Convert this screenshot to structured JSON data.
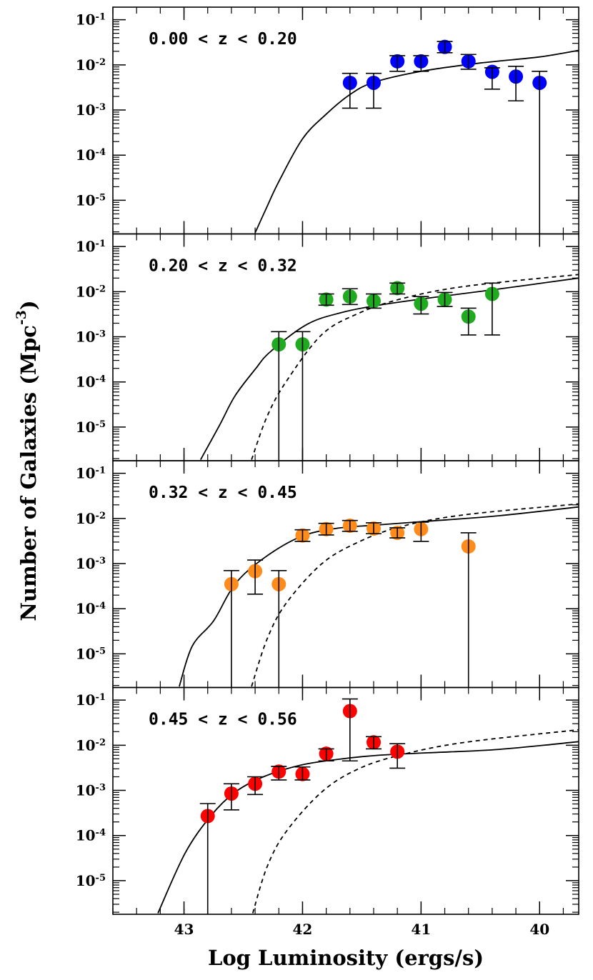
{
  "xlabel": "Log Luminosity (ergs/s)",
  "ylabel": "Number of Galaxies (Mpc^{-3})",
  "chart_data": [
    {
      "type": "scatter",
      "title": "0.00 < z < 0.20",
      "color": "#0000ff",
      "log_y": true,
      "xlim": [
        43.6,
        39.67
      ],
      "ylim": [
        1.8e-06,
        0.19
      ],
      "xticks": [
        43,
        42,
        41,
        40
      ],
      "yticks": [
        {
          "value": 0.1,
          "label": "10^{-1}"
        },
        {
          "value": 0.01,
          "label": "10^{-2}"
        },
        {
          "value": 0.001,
          "label": "10^{-3}"
        },
        {
          "value": 0.0001,
          "label": "10^{-4}"
        },
        {
          "value": 1e-05,
          "label": "10^{-5}"
        }
      ],
      "x": [
        41.6,
        41.4,
        41.2,
        41.0,
        40.8,
        40.6,
        40.4,
        40.2,
        40.0
      ],
      "values": [
        0.004,
        0.004,
        0.012,
        0.012,
        0.025,
        0.012,
        0.007,
        0.0055,
        0.004
      ],
      "lower": [
        0.0011,
        0.0011,
        0.0072,
        0.0072,
        0.0186,
        0.008,
        0.0029,
        0.0016,
        0
      ],
      "upper": [
        0.0065,
        0.0065,
        0.016,
        0.016,
        0.033,
        0.017,
        0.0086,
        0.0093,
        0.0072
      ],
      "curves": [
        {
          "dashed": false,
          "x": [
            42.4,
            42.3,
            42.2,
            42.0,
            41.8,
            41.6,
            41.4,
            41.0,
            40.5,
            40.0,
            39.67
          ],
          "y": [
            1.9e-06,
            7.2e-06,
            2.6e-05,
            0.00023,
            0.00081,
            0.0022,
            0.0041,
            0.0072,
            0.011,
            0.015,
            0.021
          ]
        }
      ]
    },
    {
      "type": "scatter",
      "title": "0.20 < z < 0.32",
      "color": "#1faa1f",
      "log_y": true,
      "xlim": [
        43.6,
        39.67
      ],
      "ylim": [
        1.8e-06,
        0.19
      ],
      "xticks": [
        43,
        42,
        41,
        40
      ],
      "yticks": [
        {
          "value": 0.1,
          "label": "10^{-1}"
        },
        {
          "value": 0.01,
          "label": "10^{-2}"
        },
        {
          "value": 0.001,
          "label": "10^{-3}"
        },
        {
          "value": 0.0001,
          "label": "10^{-4}"
        },
        {
          "value": 1e-05,
          "label": "10^{-5}"
        }
      ],
      "x": [
        42.2,
        42.0,
        41.8,
        41.6,
        41.4,
        41.2,
        41.0,
        40.8,
        40.6,
        40.4
      ],
      "values": [
        0.00068,
        0.00068,
        0.0067,
        0.0078,
        0.0062,
        0.012,
        0.0054,
        0.0067,
        0.0028,
        0.0089
      ],
      "lower": [
        0,
        0,
        0.005,
        0.0052,
        0.0043,
        0.0089,
        0.0032,
        0.0047,
        0.0011,
        0.0011
      ],
      "upper": [
        0.0013,
        0.0013,
        0.0089,
        0.0116,
        0.0089,
        0.0155,
        0.0078,
        0.0096,
        0.0043,
        0.0155
      ],
      "curves": [
        {
          "dashed": false,
          "x": [
            42.86,
            42.7,
            42.57,
            42.4,
            42.27,
            41.96,
            41.66,
            41.36,
            40.94,
            40.34,
            39.67
          ],
          "y": [
            1.9e-06,
            1.1e-05,
            4.9e-05,
            0.00019,
            0.00047,
            0.0019,
            0.0035,
            0.005,
            0.0072,
            0.0115,
            0.02
          ]
        },
        {
          "dashed": true,
          "x": [
            42.43,
            42.3,
            42.14,
            41.84,
            41.54,
            41.18,
            40.64,
            39.67
          ],
          "y": [
            1.9e-06,
            1.7e-05,
            0.0001,
            0.0011,
            0.0032,
            0.0068,
            0.013,
            0.024
          ]
        }
      ]
    },
    {
      "type": "scatter",
      "title": "0.32 < z < 0.45",
      "color": "#ff8c1a",
      "log_y": true,
      "xlim": [
        43.6,
        39.67
      ],
      "ylim": [
        1.8e-06,
        0.19
      ],
      "xticks": [
        43,
        42,
        41,
        40
      ],
      "yticks": [
        {
          "value": 0.1,
          "label": "10^{-1}"
        },
        {
          "value": 0.01,
          "label": "10^{-2}"
        },
        {
          "value": 0.001,
          "label": "10^{-3}"
        },
        {
          "value": 0.0001,
          "label": "10^{-4}"
        },
        {
          "value": 1e-05,
          "label": "10^{-5}"
        }
      ],
      "x": [
        42.6,
        42.4,
        42.2,
        42.0,
        41.8,
        41.6,
        41.4,
        41.2,
        41.0,
        40.6
      ],
      "values": [
        0.00035,
        0.00068,
        0.00035,
        0.0042,
        0.0058,
        0.0069,
        0.006,
        0.0048,
        0.0058,
        0.0024
      ],
      "lower": [
        0,
        0.00021,
        0,
        0.0031,
        0.0043,
        0.0052,
        0.0046,
        0.0037,
        0.0031,
        0
      ],
      "upper": [
        0.0007,
        0.0012,
        0.0007,
        0.0056,
        0.0078,
        0.009,
        0.008,
        0.0062,
        0.0083,
        0.0048
      ],
      "curves": [
        {
          "dashed": false,
          "x": [
            43.04,
            42.93,
            42.75,
            42.57,
            42.33,
            42.02,
            41.72,
            41.36,
            40.94,
            40.34,
            39.67
          ],
          "y": [
            1.9e-06,
            1.5e-05,
            5.4e-05,
            0.00035,
            0.0013,
            0.0039,
            0.006,
            0.0072,
            0.0087,
            0.0115,
            0.018
          ]
        },
        {
          "dashed": true,
          "x": [
            42.43,
            42.3,
            42.14,
            41.84,
            41.54,
            41.18,
            40.64,
            39.67
          ],
          "y": [
            1.9e-06,
            2.1e-05,
            0.00013,
            0.00098,
            0.0029,
            0.0065,
            0.012,
            0.021
          ]
        }
      ]
    },
    {
      "type": "scatter",
      "title": "0.45 < z < 0.56",
      "color": "#ff0000",
      "log_y": true,
      "xlim": [
        43.6,
        39.67
      ],
      "ylim": [
        1.8e-06,
        0.19
      ],
      "xticks": [
        43,
        42,
        41,
        40
      ],
      "yticks": [
        {
          "value": 0.1,
          "label": "10^{-1}"
        },
        {
          "value": 0.01,
          "label": "10^{-2}"
        },
        {
          "value": 0.001,
          "label": "10^{-3}"
        },
        {
          "value": 0.0001,
          "label": "10^{-4}"
        },
        {
          "value": 1e-05,
          "label": "10^{-5}"
        }
      ],
      "x": [
        42.8,
        42.6,
        42.4,
        42.2,
        42.0,
        41.8,
        41.6,
        41.4,
        41.2
      ],
      "values": [
        0.00027,
        0.00085,
        0.0014,
        0.0026,
        0.0023,
        0.0065,
        0.057,
        0.0116,
        0.0072
      ],
      "lower": [
        0,
        0.00037,
        0.00081,
        0.0017,
        0.0017,
        0.0045,
        0.0045,
        0.0083,
        0.0031
      ],
      "upper": [
        0.00051,
        0.0014,
        0.002,
        0.0034,
        0.0033,
        0.0083,
        0.106,
        0.0155,
        0.0108
      ],
      "curves": [
        {
          "dashed": false,
          "x": [
            43.22,
            42.99,
            42.77,
            42.57,
            42.33,
            42.02,
            41.72,
            41.36,
            40.94,
            40.34,
            39.67
          ],
          "y": [
            1.9e-06,
            4.1e-05,
            0.00028,
            0.00091,
            0.002,
            0.0036,
            0.0048,
            0.006,
            0.0068,
            0.0081,
            0.012
          ]
        },
        {
          "dashed": true,
          "x": [
            42.42,
            42.3,
            42.14,
            41.84,
            41.54,
            41.18,
            40.64,
            39.67
          ],
          "y": [
            1.9e-06,
            2e-05,
            0.00012,
            0.00091,
            0.0029,
            0.006,
            0.0115,
            0.022
          ]
        }
      ]
    }
  ]
}
